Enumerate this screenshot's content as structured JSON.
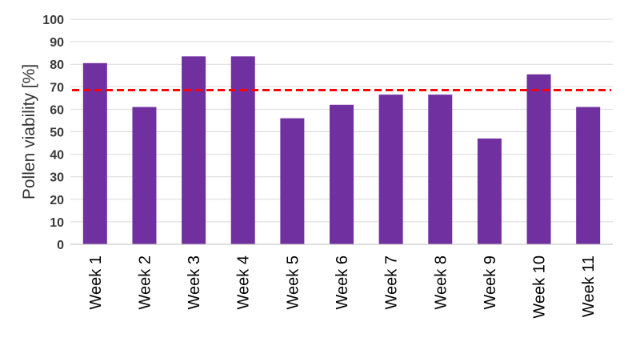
{
  "chart_data": {
    "type": "bar",
    "title": "",
    "xlabel": "",
    "ylabel": "Pollen viability [%]",
    "ylim": [
      0,
      100
    ],
    "yticks": [
      0,
      10,
      20,
      30,
      40,
      50,
      60,
      70,
      80,
      90,
      100
    ],
    "grid": true,
    "categories": [
      "Week 1",
      "Week 2",
      "Week 3",
      "Week 4",
      "Week 5",
      "Week 6",
      "Week 7",
      "Week 8",
      "Week 9",
      "Week 10",
      "Week 11"
    ],
    "values": [
      80.5,
      61,
      83.5,
      83.5,
      56,
      62,
      66.5,
      66.5,
      47,
      75.5,
      61
    ],
    "reference_line": {
      "value": 68.5,
      "style": "dashed",
      "color": "#ff0000"
    },
    "colors": {
      "bar": "#7030a0",
      "grid": "#d9d9d9",
      "axis": "#bfbfbf"
    }
  }
}
